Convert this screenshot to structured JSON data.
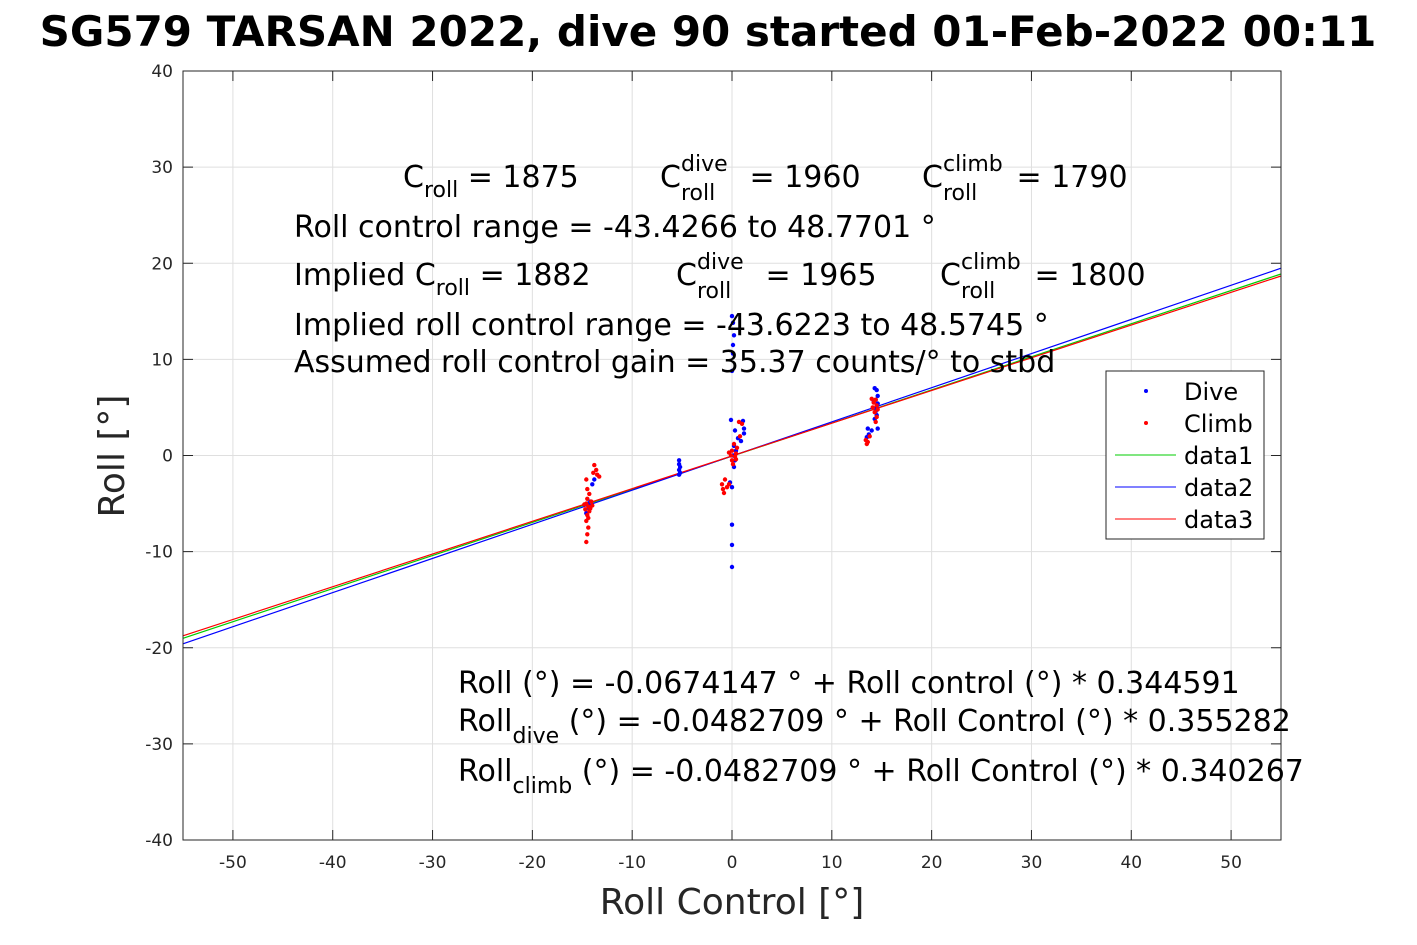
{
  "chart_data": {
    "type": "scatter",
    "title": "SG579 TARSAN 2022, dive 90 started 01-Feb-2022 00:11",
    "xlabel": "Roll Control [°]",
    "ylabel": "Roll [°]",
    "xlim": [
      -55,
      55
    ],
    "ylim": [
      -40,
      40
    ],
    "xticks": [
      -50,
      -40,
      -30,
      -20,
      -10,
      0,
      10,
      20,
      30,
      40,
      50
    ],
    "yticks": [
      -40,
      -30,
      -20,
      -10,
      0,
      10,
      20,
      30,
      40
    ],
    "xtick_labels": [
      "-50",
      "-40",
      "-30",
      "-20",
      "-10",
      "0",
      "10",
      "20",
      "30",
      "40",
      "50"
    ],
    "ytick_labels": [
      "-40",
      "-30",
      "-20",
      "-10",
      "0",
      "10",
      "20",
      "30",
      "40"
    ],
    "grid": true,
    "legend_position": "right",
    "series": [
      {
        "name": "Dive",
        "kind": "points",
        "color": "#0000ff",
        "points": [
          [
            -14.5,
            -5.0
          ],
          [
            -14.3,
            -5.5
          ],
          [
            -14.6,
            -6.0
          ],
          [
            -14.2,
            -4.8
          ],
          [
            -14.4,
            -5.2
          ],
          [
            -14.0,
            -3.0
          ],
          [
            -13.8,
            -2.5
          ],
          [
            -5.3,
            -0.5
          ],
          [
            -5.3,
            -0.9
          ],
          [
            -5.2,
            -1.2
          ],
          [
            -5.3,
            -1.5
          ],
          [
            -5.2,
            -1.8
          ],
          [
            -5.3,
            -2.0
          ],
          [
            0.0,
            14.5
          ],
          [
            0.1,
            13.8
          ],
          [
            0.2,
            12.5
          ],
          [
            0.1,
            11.5
          ],
          [
            0.1,
            10.6
          ],
          [
            0.0,
            8.8
          ],
          [
            -0.1,
            3.7
          ],
          [
            0.3,
            2.6
          ],
          [
            0.6,
            1.8
          ],
          [
            0.2,
            1.0
          ],
          [
            0.4,
            0.5
          ],
          [
            0.1,
            0.0
          ],
          [
            0.3,
            -0.5
          ],
          [
            0.2,
            -1.2
          ],
          [
            -0.2,
            -2.8
          ],
          [
            0.0,
            -3.3
          ],
          [
            0.0,
            -7.2
          ],
          [
            0.0,
            -9.3
          ],
          [
            0.0,
            -11.6
          ],
          [
            1.1,
            3.6
          ],
          [
            1.2,
            2.8
          ],
          [
            0.9,
            1.5
          ],
          [
            1.2,
            2.3
          ],
          [
            14.3,
            7.0
          ],
          [
            14.5,
            6.8
          ],
          [
            14.6,
            6.2
          ],
          [
            14.4,
            5.8
          ],
          [
            14.6,
            5.4
          ],
          [
            14.5,
            5.0
          ],
          [
            14.4,
            4.6
          ],
          [
            14.5,
            4.2
          ],
          [
            14.3,
            3.8
          ],
          [
            14.6,
            2.8
          ],
          [
            13.6,
            2.8
          ],
          [
            14.0,
            2.6
          ],
          [
            13.5,
            1.9
          ],
          [
            13.7,
            2.2
          ],
          [
            14.2,
            5.6
          ]
        ]
      },
      {
        "name": "Climb",
        "kind": "points",
        "color": "#ff0000",
        "points": [
          [
            -14.5,
            -4.5
          ],
          [
            -14.6,
            -5.0
          ],
          [
            -14.4,
            -5.3
          ],
          [
            -14.7,
            -5.6
          ],
          [
            -14.3,
            -5.8
          ],
          [
            -14.5,
            -6.2
          ],
          [
            -14.6,
            -6.8
          ],
          [
            -14.4,
            -7.5
          ],
          [
            -14.5,
            -8.2
          ],
          [
            -14.6,
            -9.0
          ],
          [
            -14.5,
            -3.5
          ],
          [
            -14.6,
            -2.5
          ],
          [
            -14.3,
            -4.0
          ],
          [
            -14.4,
            -6.5
          ],
          [
            -14.0,
            -5.2
          ],
          [
            -14.2,
            -5.5
          ],
          [
            -14.8,
            -5.1
          ],
          [
            -14.1,
            -4.8
          ],
          [
            -13.8,
            -1.0
          ],
          [
            -13.6,
            -1.5
          ],
          [
            -13.5,
            -2.0
          ],
          [
            -13.3,
            -2.2
          ],
          [
            -13.9,
            -1.8
          ],
          [
            -1.0,
            -3.0
          ],
          [
            -0.9,
            -3.5
          ],
          [
            -0.8,
            -3.9
          ],
          [
            -0.7,
            -2.5
          ],
          [
            -0.5,
            -3.3
          ],
          [
            -0.3,
            -3.0
          ],
          [
            0.0,
            0.5
          ],
          [
            0.2,
            1.2
          ],
          [
            -0.3,
            0.3
          ],
          [
            0.4,
            -0.4
          ],
          [
            0.1,
            -0.9
          ],
          [
            0.5,
            0.8
          ],
          [
            -0.1,
            0.0
          ],
          [
            0.3,
            -0.1
          ],
          [
            0.0,
            -0.5
          ],
          [
            0.7,
            3.5
          ],
          [
            1.0,
            3.3
          ],
          [
            0.8,
            2.0
          ],
          [
            0.4,
            0.2
          ],
          [
            14.3,
            4.5
          ],
          [
            14.5,
            5.2
          ],
          [
            14.4,
            5.8
          ],
          [
            14.6,
            4.8
          ],
          [
            14.2,
            5.5
          ],
          [
            14.5,
            4.0
          ],
          [
            14.4,
            3.5
          ],
          [
            14.1,
            5.0
          ],
          [
            13.5,
            1.2
          ],
          [
            13.4,
            1.6
          ],
          [
            13.8,
            2.0
          ],
          [
            13.6,
            1.4
          ],
          [
            14.0,
            5.9
          ]
        ]
      },
      {
        "name": "data1",
        "kind": "line",
        "color": "#00cc00",
        "x": [
          -55,
          55
        ],
        "y": [
          -19.02,
          18.88
        ]
      },
      {
        "name": "data2",
        "kind": "line",
        "color": "#0000ff",
        "x": [
          -55,
          55
        ],
        "y": [
          -19.59,
          19.49
        ]
      },
      {
        "name": "data3",
        "kind": "line",
        "color": "#ff0000",
        "x": [
          -55,
          55
        ],
        "y": [
          -18.76,
          18.67
        ]
      }
    ],
    "annotations": {
      "c_roll": {
        "sym": "C",
        "sub": "roll",
        "value": " = 1875"
      },
      "c_roll_dive": {
        "sym": "C",
        "sup": "dive",
        "sub": "roll",
        "value": " = 1960"
      },
      "c_roll_climb": {
        "sym": "C",
        "sup": "climb",
        "sub": "roll",
        "value": " = 1790"
      },
      "range_line": "Roll control range = -43.4266 to 48.7701 °",
      "implied_prefix": "Implied ",
      "implied_c_roll": {
        "sym": "C",
        "sub": "roll",
        "value": " = 1882"
      },
      "implied_c_dive": {
        "sym": "C",
        "sup": "dive",
        "sub": "roll",
        "value": " = 1965"
      },
      "implied_c_climb": {
        "sym": "C",
        "sup": "climb",
        "sub": "roll",
        "value": " = 1800"
      },
      "implied_range_line": "Implied roll control range = -43.6223 to 48.5745 °",
      "gain_line": "Assumed roll control gain = 35.37 counts/° to stbd",
      "fit_all": "Roll (°) = -0.0674147 ° + Roll control (°) * 0.344591",
      "fit_dive": {
        "sym": "Roll",
        "sub": "dive",
        "rest": " (°) = -0.0482709 ° + Roll Control (°) * 0.355282"
      },
      "fit_climb": {
        "sym": "Roll",
        "sub": "climb",
        "rest": " (°) = -0.0482709 ° + Roll Control (°) * 0.340267"
      }
    }
  }
}
